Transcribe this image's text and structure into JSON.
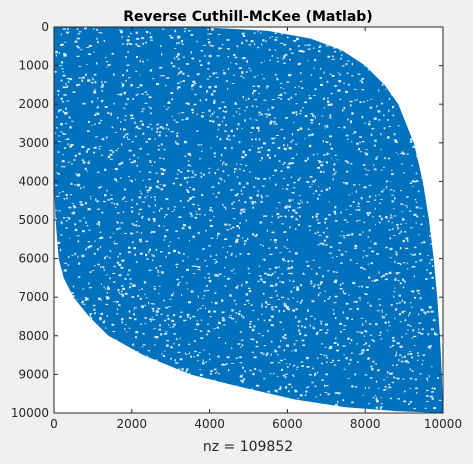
{
  "chart_data": {
    "type": "scatter",
    "title": "Reverse Cuthill-McKee (Matlab)",
    "xlabel": "nz = 109852",
    "ylabel": "",
    "xlim": [
      0,
      10000
    ],
    "ylim": [
      0,
      10000
    ],
    "y_direction": "reversed",
    "x_ticks": [
      "0",
      "2000",
      "4000",
      "6000",
      "8000",
      "10000"
    ],
    "y_ticks": [
      "0",
      "1000",
      "2000",
      "3000",
      "4000",
      "5000",
      "6000",
      "7000",
      "8000",
      "9000",
      "10000"
    ],
    "nonzero_count": 109852,
    "sparsity_envelope": {
      "right_edge": [
        {
          "row": 0,
          "col": 3700
        },
        {
          "row": 100,
          "col": 5500
        },
        {
          "row": 300,
          "col": 6600
        },
        {
          "row": 600,
          "col": 7400
        },
        {
          "row": 1000,
          "col": 8000
        },
        {
          "row": 1500,
          "col": 8500
        },
        {
          "row": 2000,
          "col": 8850
        },
        {
          "row": 3000,
          "col": 9250
        },
        {
          "row": 4000,
          "col": 9480
        },
        {
          "row": 5000,
          "col": 9640
        },
        {
          "row": 6000,
          "col": 9760
        },
        {
          "row": 7000,
          "col": 9850
        },
        {
          "row": 8000,
          "col": 9920
        },
        {
          "row": 9000,
          "col": 9970
        },
        {
          "row": 10000,
          "col": 10000
        }
      ],
      "left_edge": [
        {
          "row": 10000,
          "col": 10000
        },
        {
          "row": 9950,
          "col": 8800
        },
        {
          "row": 9850,
          "col": 7500
        },
        {
          "row": 9650,
          "col": 6200
        },
        {
          "row": 9300,
          "col": 4700
        },
        {
          "row": 9000,
          "col": 3500
        },
        {
          "row": 8500,
          "col": 2300
        },
        {
          "row": 8000,
          "col": 1400
        },
        {
          "row": 7500,
          "col": 900
        },
        {
          "row": 7000,
          "col": 500
        },
        {
          "row": 6500,
          "col": 250
        },
        {
          "row": 6000,
          "col": 120
        },
        {
          "row": 5000,
          "col": 40
        },
        {
          "row": 4000,
          "col": 0
        },
        {
          "row": 0,
          "col": 0
        }
      ]
    },
    "colors": {
      "marker": "#0072bd",
      "axes_background": "#ffffff",
      "figure_background": "#f0f0f0",
      "axis": "#262626"
    },
    "grid": false,
    "legend": "none"
  }
}
